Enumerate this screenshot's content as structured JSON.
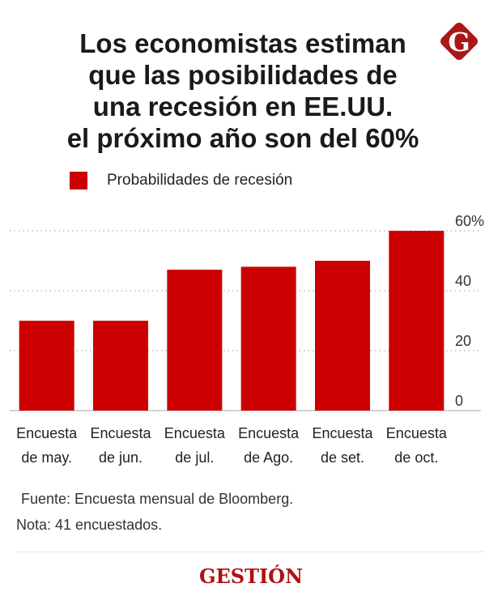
{
  "title_lines": [
    "Los economistas estiman",
    "que las posibilidades de",
    "una recesión en EE.UU.",
    "el próximo año son del 60%"
  ],
  "logo_letter": "G",
  "brand": "GESTIÓN",
  "source": "Fuente: Encuesta mensual de Bloomberg.",
  "note": "Nota: 41 encuestados.",
  "chart_data": {
    "type": "bar",
    "title": "Los economistas estiman que las posibilidades de una recesión en EE.UU. el próximo año son del 60%",
    "legend": [
      "Probabilidades de recesión"
    ],
    "legend_position": "top-left",
    "categories": [
      [
        "Encuesta",
        "de may."
      ],
      [
        "Encuesta",
        "de jun."
      ],
      [
        "Encuesta",
        "de jul."
      ],
      [
        "Encuesta",
        "de Ago."
      ],
      [
        "Encuesta",
        "de set."
      ],
      [
        "Encuesta",
        "de oct."
      ]
    ],
    "series": [
      {
        "name": "Probabilidades de recesión",
        "values": [
          30,
          30,
          47,
          48,
          50,
          60
        ],
        "color": "#cc0000"
      }
    ],
    "ylim": [
      0,
      60
    ],
    "yticks": [
      0,
      20,
      40,
      60
    ],
    "ytick_labels": [
      "0",
      "20",
      "40",
      "60%"
    ],
    "yaxis_side": "right",
    "grid": true
  }
}
